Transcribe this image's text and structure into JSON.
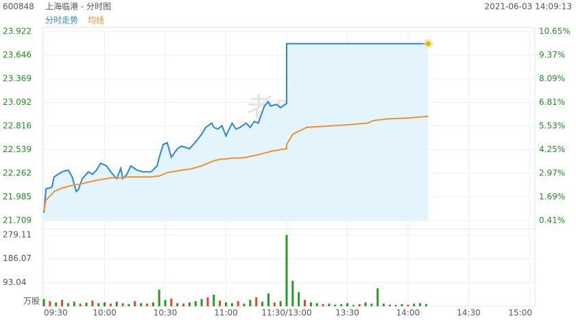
{
  "header": {
    "code": "600848",
    "name": "上海临港 - 分时图",
    "datetime": "2021-06-03 14:09:13"
  },
  "chart_data": [
    {
      "type": "line",
      "watermark": "老虎社区",
      "grid": true,
      "x": [
        0,
        1,
        4,
        5,
        9,
        12,
        14,
        16,
        17,
        19,
        22,
        24,
        26,
        28,
        31,
        33,
        36,
        38,
        39,
        41,
        43,
        46,
        49,
        53,
        56,
        57,
        59,
        61,
        63,
        66,
        68,
        72,
        75,
        78,
        80,
        83,
        84,
        86,
        88,
        90,
        93,
        95,
        97,
        100,
        102,
        104,
        106,
        109,
        111,
        112,
        115,
        117,
        120,
        120,
        123,
        130,
        150,
        160,
        163,
        170,
        180,
        190
      ],
      "series": [
        {
          "name": "分时走势",
          "color": "#2a84e0",
          "area": "#e3f4fc",
          "values": [
            21.8,
            22.08,
            22.1,
            22.22,
            22.28,
            22.3,
            22.22,
            22.05,
            22.07,
            22.2,
            22.28,
            22.25,
            22.3,
            22.38,
            22.35,
            22.28,
            22.2,
            22.32,
            22.2,
            22.25,
            22.35,
            22.3,
            22.28,
            22.28,
            22.35,
            22.45,
            22.6,
            22.62,
            22.45,
            22.55,
            22.58,
            22.55,
            22.63,
            22.72,
            22.8,
            22.85,
            22.8,
            22.78,
            22.82,
            22.7,
            22.85,
            22.78,
            22.8,
            22.85,
            22.8,
            22.87,
            22.85,
            23.05,
            23.1,
            23.05,
            23.07,
            23.03,
            23.08,
            23.78,
            23.78,
            23.78,
            23.78,
            23.78,
            23.78,
            23.78,
            23.78,
            23.78
          ]
        },
        {
          "name": "均线",
          "color": "#f0902a",
          "values": [
            21.82,
            21.95,
            22.02,
            22.05,
            22.09,
            22.11,
            22.12,
            22.13,
            22.13,
            22.14,
            22.16,
            22.17,
            22.18,
            22.19,
            22.2,
            22.21,
            22.21,
            22.21,
            22.21,
            22.22,
            22.22,
            22.22,
            22.22,
            22.22,
            22.23,
            22.23,
            22.25,
            22.27,
            22.28,
            22.29,
            22.3,
            22.31,
            22.33,
            22.35,
            22.37,
            22.4,
            22.41,
            22.42,
            22.43,
            22.43,
            22.44,
            22.44,
            22.44,
            22.45,
            22.46,
            22.47,
            22.48,
            22.5,
            22.51,
            22.52,
            22.53,
            22.54,
            22.55,
            22.6,
            22.72,
            22.8,
            22.83,
            22.85,
            22.88,
            22.9,
            22.91,
            22.93
          ]
        }
      ],
      "xlim": [
        0,
        240
      ],
      "xticks": [
        {
          "value": 0,
          "label": "09:30"
        },
        {
          "value": 30,
          "label": "10:00"
        },
        {
          "value": 60,
          "label": "10:30"
        },
        {
          "value": 90,
          "label": "11:00"
        },
        {
          "value": 120,
          "label": "11:30/13:00"
        },
        {
          "value": 150,
          "label": "13:30"
        },
        {
          "value": 180,
          "label": "14:00"
        },
        {
          "value": 210,
          "label": "14:30"
        },
        {
          "value": 240,
          "label": "15:00"
        }
      ],
      "ylim": [
        21.709,
        23.922
      ],
      "yticks": [
        21.709,
        21.985,
        22.262,
        22.539,
        22.816,
        23.092,
        23.369,
        23.646,
        23.922
      ],
      "y2lim": [
        0.41,
        10.65
      ],
      "y2ticks": [
        {
          "value": 0.41,
          "label": "0.41%"
        },
        {
          "value": 1.69,
          "label": "1.69%"
        },
        {
          "value": 2.97,
          "label": "2.97%"
        },
        {
          "value": 4.25,
          "label": "4.25%"
        },
        {
          "value": 5.53,
          "label": "5.53%"
        },
        {
          "value": 6.81,
          "label": "6.81%"
        },
        {
          "value": 8.09,
          "label": "8.09%"
        },
        {
          "value": 9.37,
          "label": "9.37%"
        },
        {
          "value": 10.65,
          "label": "10.65%"
        }
      ]
    },
    {
      "type": "bar",
      "unit": "万股",
      "grid": true,
      "x": [
        0,
        3,
        6,
        9,
        12,
        15,
        18,
        21,
        24,
        27,
        30,
        33,
        36,
        39,
        42,
        45,
        48,
        51,
        54,
        57,
        60,
        63,
        66,
        69,
        72,
        75,
        78,
        81,
        84,
        87,
        90,
        93,
        96,
        99,
        102,
        105,
        108,
        111,
        114,
        117,
        120,
        123,
        126,
        129,
        132,
        135,
        138,
        141,
        144,
        147,
        150,
        153,
        156,
        159,
        162,
        165,
        168,
        171,
        174,
        177,
        180,
        183,
        186,
        189
      ],
      "values": [
        28,
        20,
        15,
        25,
        12,
        18,
        10,
        14,
        22,
        12,
        15,
        10,
        18,
        12,
        8,
        20,
        12,
        10,
        15,
        65,
        25,
        30,
        12,
        10,
        15,
        20,
        28,
        35,
        45,
        22,
        15,
        12,
        20,
        10,
        25,
        35,
        18,
        50,
        15,
        20,
        279.11,
        100,
        55,
        25,
        15,
        12,
        8,
        10,
        6,
        8,
        12,
        5,
        8,
        15,
        10,
        70,
        10,
        6,
        5,
        8,
        6,
        10,
        12,
        8
      ],
      "colors": [
        "#229b22",
        "#e8412c",
        "#229b22",
        "#e8412c",
        "#229b22",
        "#229b22",
        "#e8412c",
        "#229b22",
        "#e8412c",
        "#229b22",
        "#229b22",
        "#e8412c",
        "#229b22",
        "#e8412c",
        "#229b22",
        "#e8412c",
        "#229b22",
        "#e8412c",
        "#229b22",
        "#229b22",
        "#229b22",
        "#e8412c",
        "#229b22",
        "#e8412c",
        "#229b22",
        "#229b22",
        "#229b22",
        "#e8412c",
        "#229b22",
        "#e8412c",
        "#229b22",
        "#229b22",
        "#e8412c",
        "#229b22",
        "#229b22",
        "#e8412c",
        "#229b22",
        "#229b22",
        "#e8412c",
        "#229b22",
        "#229b22",
        "#229b22",
        "#229b22",
        "#e8412c",
        "#229b22",
        "#229b22",
        "#e8412c",
        "#229b22",
        "#229b22",
        "#229b22",
        "#229b22",
        "#229b22",
        "#e8412c",
        "#229b22",
        "#229b22",
        "#229b22",
        "#229b22",
        "#e8412c",
        "#229b22",
        "#229b22",
        "#e8412c",
        "#229b22",
        "#229b22",
        "#229b22"
      ],
      "xlim": [
        0,
        240
      ],
      "ylim": [
        0,
        279.11
      ],
      "yticks": [
        93.04,
        186.07,
        279.11
      ]
    }
  ]
}
